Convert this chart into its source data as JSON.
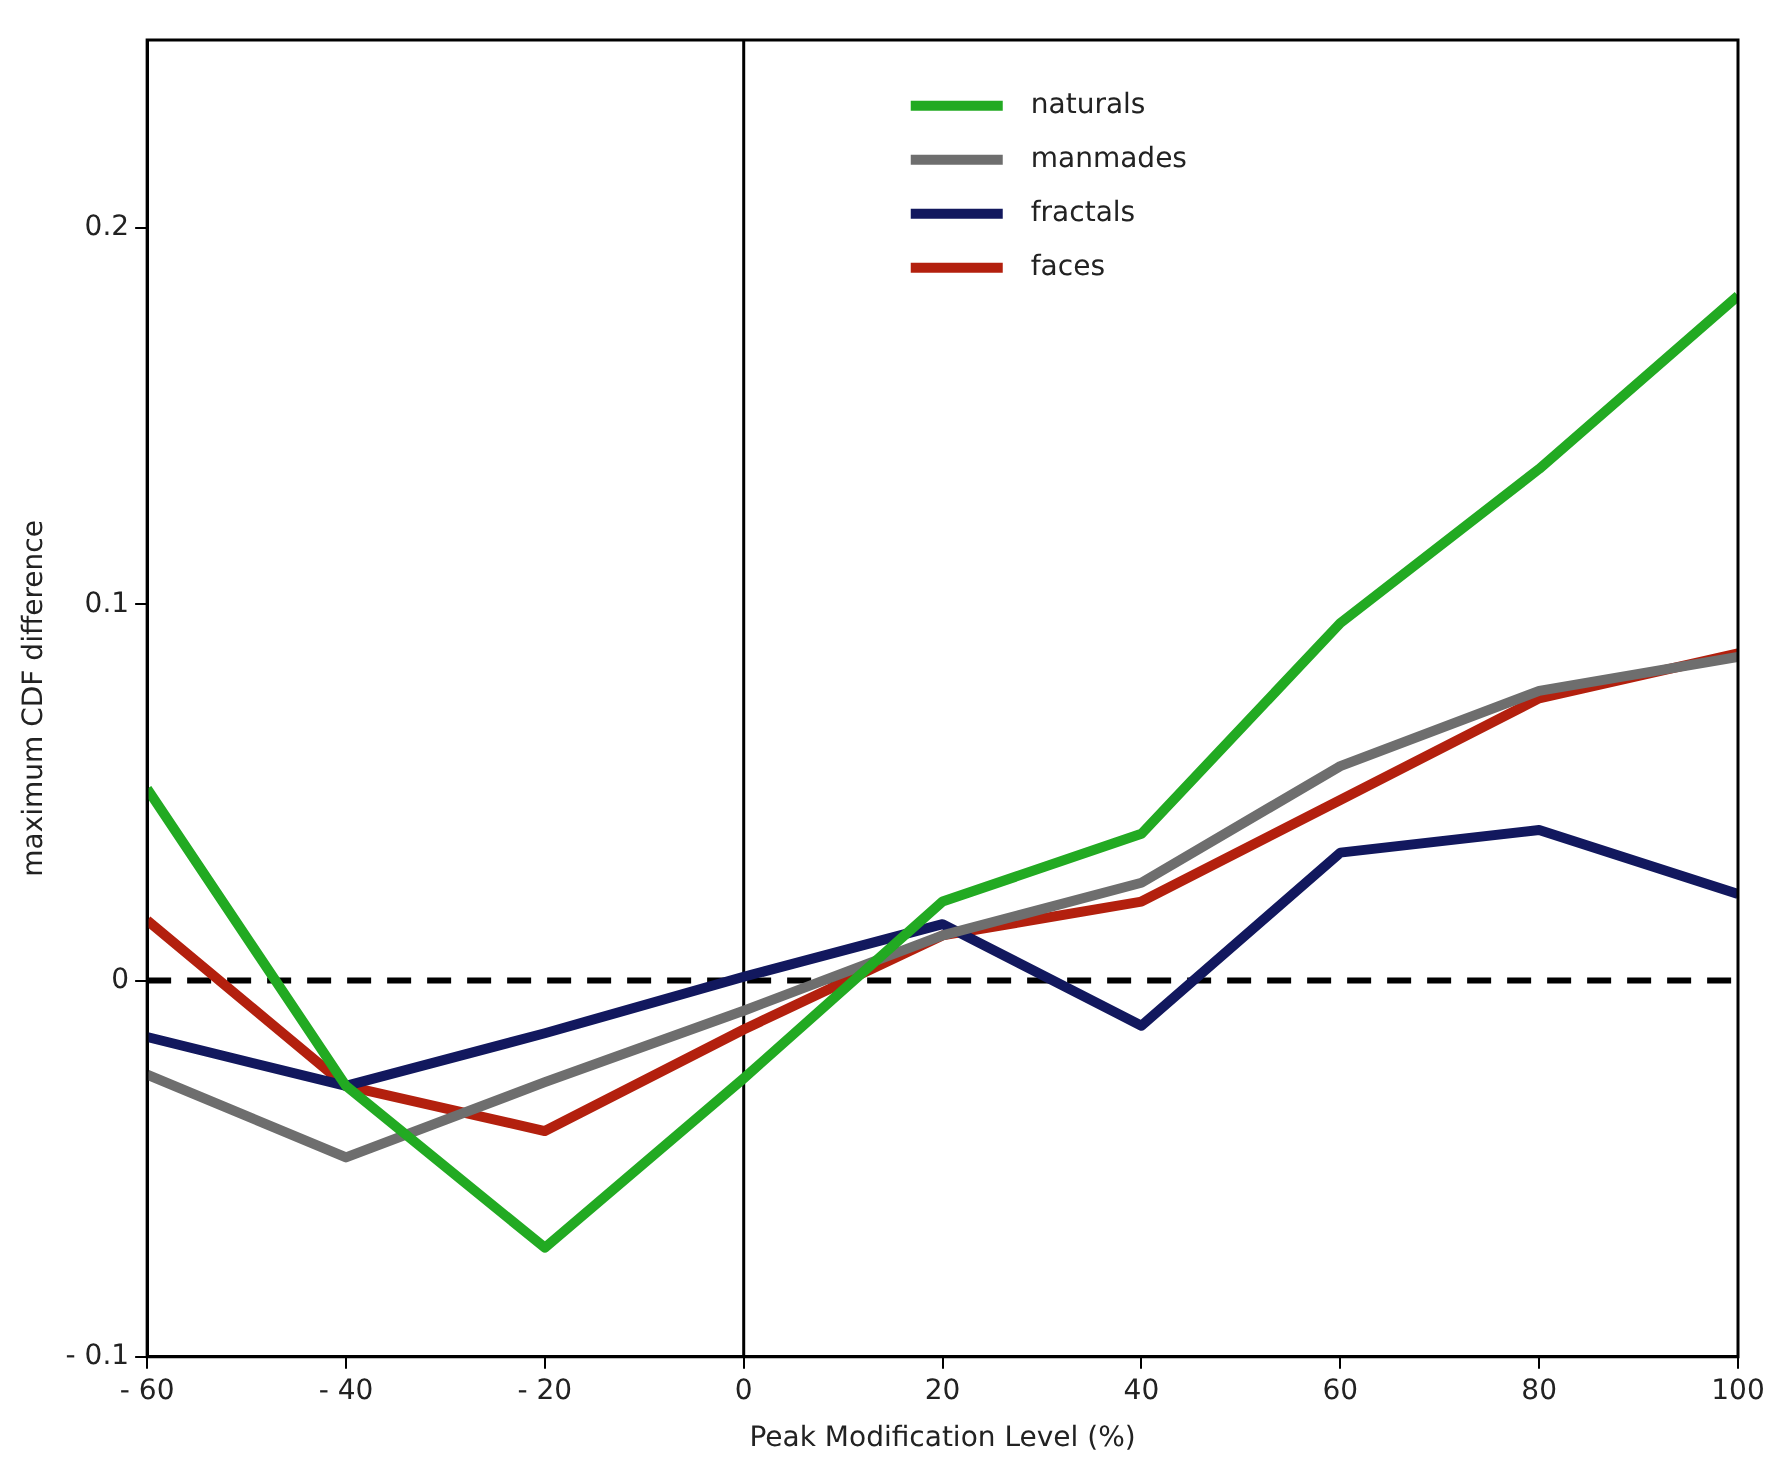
{
  "chart_data": {
    "type": "line",
    "xlabel": "Peak Modification Level (%)",
    "ylabel": "maximum CDF difference",
    "x": [
      -60,
      -40,
      -20,
      0,
      20,
      40,
      60,
      80,
      100
    ],
    "series": [
      {
        "name": "naturals",
        "color": "#22aa22",
        "values": [
          0.051,
          -0.028,
          -0.071,
          -0.026,
          0.021,
          0.039,
          0.095,
          0.136,
          0.182
        ]
      },
      {
        "name": "manmades",
        "color": "#6e6e6e",
        "values": [
          -0.025,
          -0.047,
          -0.027,
          -0.008,
          0.012,
          0.026,
          0.057,
          0.077,
          0.086
        ]
      },
      {
        "name": "fractals",
        "color": "#12185e",
        "values": [
          -0.015,
          -0.028,
          -0.014,
          0.001,
          0.015,
          -0.012,
          0.034,
          0.04,
          0.023
        ]
      },
      {
        "name": "faces",
        "color": "#b3200e",
        "values": [
          0.016,
          -0.028,
          -0.04,
          -0.013,
          0.012,
          0.021,
          0.048,
          0.075,
          0.087
        ]
      }
    ],
    "xlim": [
      -60,
      100
    ],
    "xticks": [
      {
        "value": -60,
        "label": "- 60"
      },
      {
        "value": -40,
        "label": "- 40"
      },
      {
        "value": -20,
        "label": "- 20"
      },
      0,
      20,
      40,
      60,
      80,
      100
    ],
    "ylim": [
      -0.1,
      0.25
    ],
    "yticks": [
      {
        "value": -0.1,
        "label": "- 0.1"
      },
      0,
      0.1,
      0.2
    ],
    "ref_lines": [
      {
        "axis": "y",
        "value": 0,
        "color": "#000000",
        "line_style": "dashed"
      },
      {
        "axis": "x",
        "value": 0,
        "color": "#000000",
        "line_style": "solid"
      }
    ],
    "legend": "top",
    "grid": false,
    "marker": "none",
    "line_style": "solid"
  }
}
